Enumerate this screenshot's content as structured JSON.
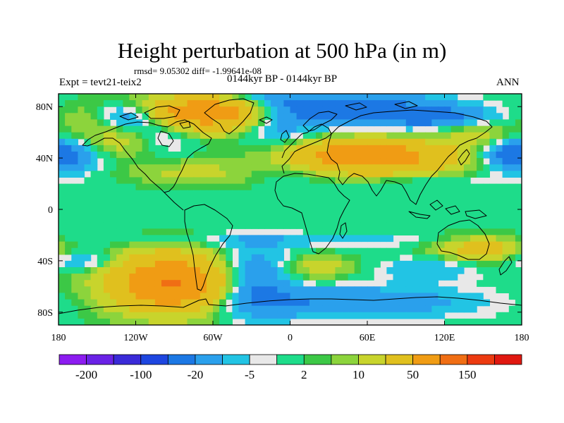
{
  "title": "Height perturbation at 500 hPa (in m)",
  "stats": "rmsd= 9.05302 diff= -1.99641e-08",
  "experiment": "Expt = tevt21-teix2",
  "period": "0144kyr BP - 0144kyr BP",
  "season": "ANN",
  "map": {
    "projection": "cylindrical equidistant",
    "lon_range": [
      -180,
      180
    ],
    "lat_range": [
      -90,
      90
    ],
    "lon_ticks": [
      {
        "value": -180,
        "label": "180"
      },
      {
        "value": -120,
        "label": "120W"
      },
      {
        "value": -60,
        "label": "60W"
      },
      {
        "value": 0,
        "label": "0"
      },
      {
        "value": 60,
        "label": "60E"
      },
      {
        "value": 120,
        "label": "120E"
      },
      {
        "value": 180,
        "label": "180"
      }
    ],
    "lat_ticks": [
      {
        "value": 80,
        "label": "80N"
      },
      {
        "value": 40,
        "label": "40N"
      },
      {
        "value": 0,
        "label": "0"
      },
      {
        "value": -40,
        "label": "40S"
      },
      {
        "value": -80,
        "label": "80S"
      }
    ]
  },
  "colorbar": {
    "colors": [
      "#8c1cf0",
      "#6a22e6",
      "#3a2ad8",
      "#1e46e0",
      "#1c78e4",
      "#2aa0ec",
      "#22c4e4",
      "#e8e8e8",
      "#1edc8a",
      "#3cc846",
      "#8cd43c",
      "#c8d42c",
      "#e0c01e",
      "#f09c14",
      "#f06e14",
      "#ec3a10",
      "#e01810"
    ],
    "labels": [
      {
        "after_box": 1,
        "text": "-200"
      },
      {
        "after_box": 3,
        "text": "-100"
      },
      {
        "after_box": 5,
        "text": "-20"
      },
      {
        "after_box": 7,
        "text": "-5"
      },
      {
        "after_box": 9,
        "text": "2"
      },
      {
        "after_box": 11,
        "text": "10"
      },
      {
        "after_box": 13,
        "text": "50"
      },
      {
        "after_box": 15,
        "text": "150"
      }
    ]
  },
  "field": {
    "description_units": "m",
    "blobs": [
      {
        "lon": -65,
        "lat": 72,
        "rx": 70,
        "ry": 16,
        "value": 45
      },
      {
        "lon": -65,
        "lat": 76,
        "rx": 40,
        "ry": 9,
        "value": 55
      },
      {
        "lon": -155,
        "lat": 72,
        "rx": 25,
        "ry": 10,
        "value": 14
      },
      {
        "lon": -130,
        "lat": 52,
        "rx": 30,
        "ry": 12,
        "value": 15
      },
      {
        "lon": -75,
        "lat": 28,
        "rx": 55,
        "ry": 10,
        "value": 12
      },
      {
        "lon": 60,
        "lat": 40,
        "rx": 75,
        "ry": 15,
        "value": 42
      },
      {
        "lon": 60,
        "lat": 42,
        "rx": 42,
        "ry": 9,
        "value": 55
      },
      {
        "lon": 145,
        "lat": 60,
        "rx": 28,
        "ry": 14,
        "value": 12
      },
      {
        "lon": -90,
        "lat": -57,
        "rx": 55,
        "ry": 25,
        "value": 45
      },
      {
        "lon": -95,
        "lat": -58,
        "rx": 32,
        "ry": 16,
        "value": 60
      },
      {
        "lon": 22,
        "lat": -45,
        "rx": 28,
        "ry": 10,
        "value": 15
      },
      {
        "lon": 140,
        "lat": -32,
        "rx": 45,
        "ry": 12,
        "value": 13
      },
      {
        "lon": 150,
        "lat": -30,
        "rx": 25,
        "ry": 8,
        "value": 20
      },
      {
        "lon": -15,
        "lat": 72,
        "rx": 38,
        "ry": 24,
        "value": -30
      },
      {
        "lon": 50,
        "lat": 78,
        "rx": 70,
        "ry": 14,
        "value": -28
      },
      {
        "lon": -125,
        "lat": 73,
        "rx": 35,
        "ry": 10,
        "value": -35
      },
      {
        "lon": -100,
        "lat": 60,
        "rx": 32,
        "ry": 14,
        "value": -22
      },
      {
        "lon": -178,
        "lat": 40,
        "rx": 28,
        "ry": 12,
        "value": -25
      },
      {
        "lon": 172,
        "lat": 44,
        "rx": 24,
        "ry": 10,
        "value": -20
      },
      {
        "lon": 0,
        "lat": 30,
        "rx": 38,
        "ry": 9,
        "value": -10
      },
      {
        "lon": 100,
        "lat": 22,
        "rx": 70,
        "ry": 6,
        "value": -7
      },
      {
        "lon": 0,
        "lat": -24,
        "rx": 180,
        "ry": 5,
        "value": -8
      },
      {
        "lon": -30,
        "lat": -55,
        "rx": 30,
        "ry": 27,
        "value": -28
      },
      {
        "lon": 40,
        "lat": -72,
        "rx": 100,
        "ry": 12,
        "value": -20
      },
      {
        "lon": -160,
        "lat": -40,
        "rx": 30,
        "ry": 8,
        "value": -15
      },
      {
        "lon": 110,
        "lat": -45,
        "rx": 38,
        "ry": 10,
        "value": -12
      },
      {
        "lon": 120,
        "lat": 72,
        "rx": 45,
        "ry": 8,
        "value": -22
      }
    ]
  }
}
